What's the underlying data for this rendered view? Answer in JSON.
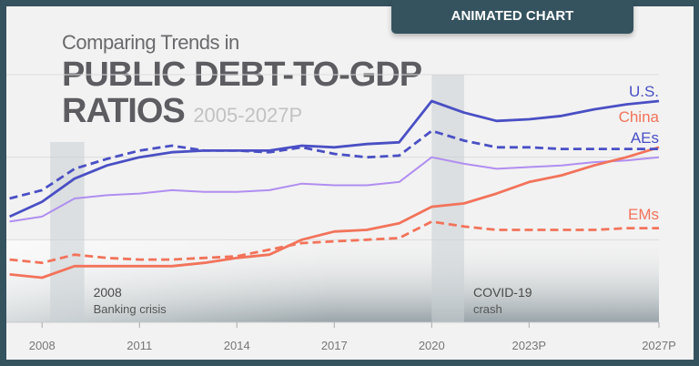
{
  "badge": "ANIMATED CHART",
  "chart_data": {
    "type": "line",
    "title_line1": "Comparing Trends in",
    "title_line2": "PUBLIC DEBT-TO-GDP",
    "title_line3": "RATIOS",
    "subtitle": "2005-2027P",
    "x": [
      2007,
      2008,
      2009,
      2010,
      2011,
      2012,
      2013,
      2014,
      2015,
      2016,
      2017,
      2018,
      2019,
      2020,
      2021,
      2022,
      2023,
      2024,
      2025,
      2026,
      2027
    ],
    "xlim": [
      2006.9,
      2027
    ],
    "ylim": [
      0,
      150
    ],
    "gridlines": [
      50,
      100,
      150
    ],
    "xticks": [
      {
        "value": 2008,
        "label": "2008"
      },
      {
        "value": 2011,
        "label": "2011"
      },
      {
        "value": 2014,
        "label": "2014"
      },
      {
        "value": 2017,
        "label": "2017"
      },
      {
        "value": 2020,
        "label": "2020"
      },
      {
        "value": 2023,
        "label": "2023P"
      },
      {
        "value": 2027,
        "label": "2027P"
      }
    ],
    "series": [
      {
        "name": "",
        "color": "#b08ef0",
        "style": "solid",
        "values": [
          61,
          64,
          75,
          77,
          78,
          80,
          79,
          79,
          80,
          84,
          83,
          83,
          85,
          100,
          96,
          93,
          94,
          95,
          97,
          98,
          100
        ]
      },
      {
        "name": "EMs",
        "color": "#f2735a",
        "style": "dashed",
        "values": [
          38,
          36,
          41,
          39,
          38,
          38,
          39,
          40,
          44,
          48,
          49,
          50,
          51,
          61,
          58,
          56,
          56,
          56,
          56,
          57,
          57
        ]
      },
      {
        "name": "China",
        "color": "#f2735a",
        "style": "solid",
        "values": [
          29,
          27,
          34,
          34,
          34,
          34,
          36,
          39,
          41,
          50,
          55,
          56,
          60,
          70,
          72,
          78,
          85,
          89,
          95,
          100,
          106
        ]
      },
      {
        "name": "AEs",
        "color": "#4a4fc4",
        "style": "dashed",
        "values": [
          75,
          80,
          93,
          99,
          104,
          107,
          104,
          104,
          103,
          106,
          102,
          100,
          101,
          116,
          110,
          106,
          106,
          105,
          105,
          105,
          105
        ]
      },
      {
        "name": "U.S.",
        "color": "#4a4fc4",
        "style": "solid",
        "values": [
          64,
          73,
          87,
          95,
          100,
          103,
          104,
          104,
          104,
          107,
          106,
          108,
          109,
          134,
          127,
          122,
          123,
          125,
          129,
          132,
          134
        ]
      }
    ],
    "annotations": [
      {
        "range": [
          2008.25,
          2009.3
        ],
        "line1": "2008",
        "line2": "Banking crisis"
      },
      {
        "range": [
          2020,
          2021
        ],
        "line1": "COVID-19",
        "line2": "crash"
      }
    ],
    "grid": true,
    "legend": "inline-right"
  }
}
